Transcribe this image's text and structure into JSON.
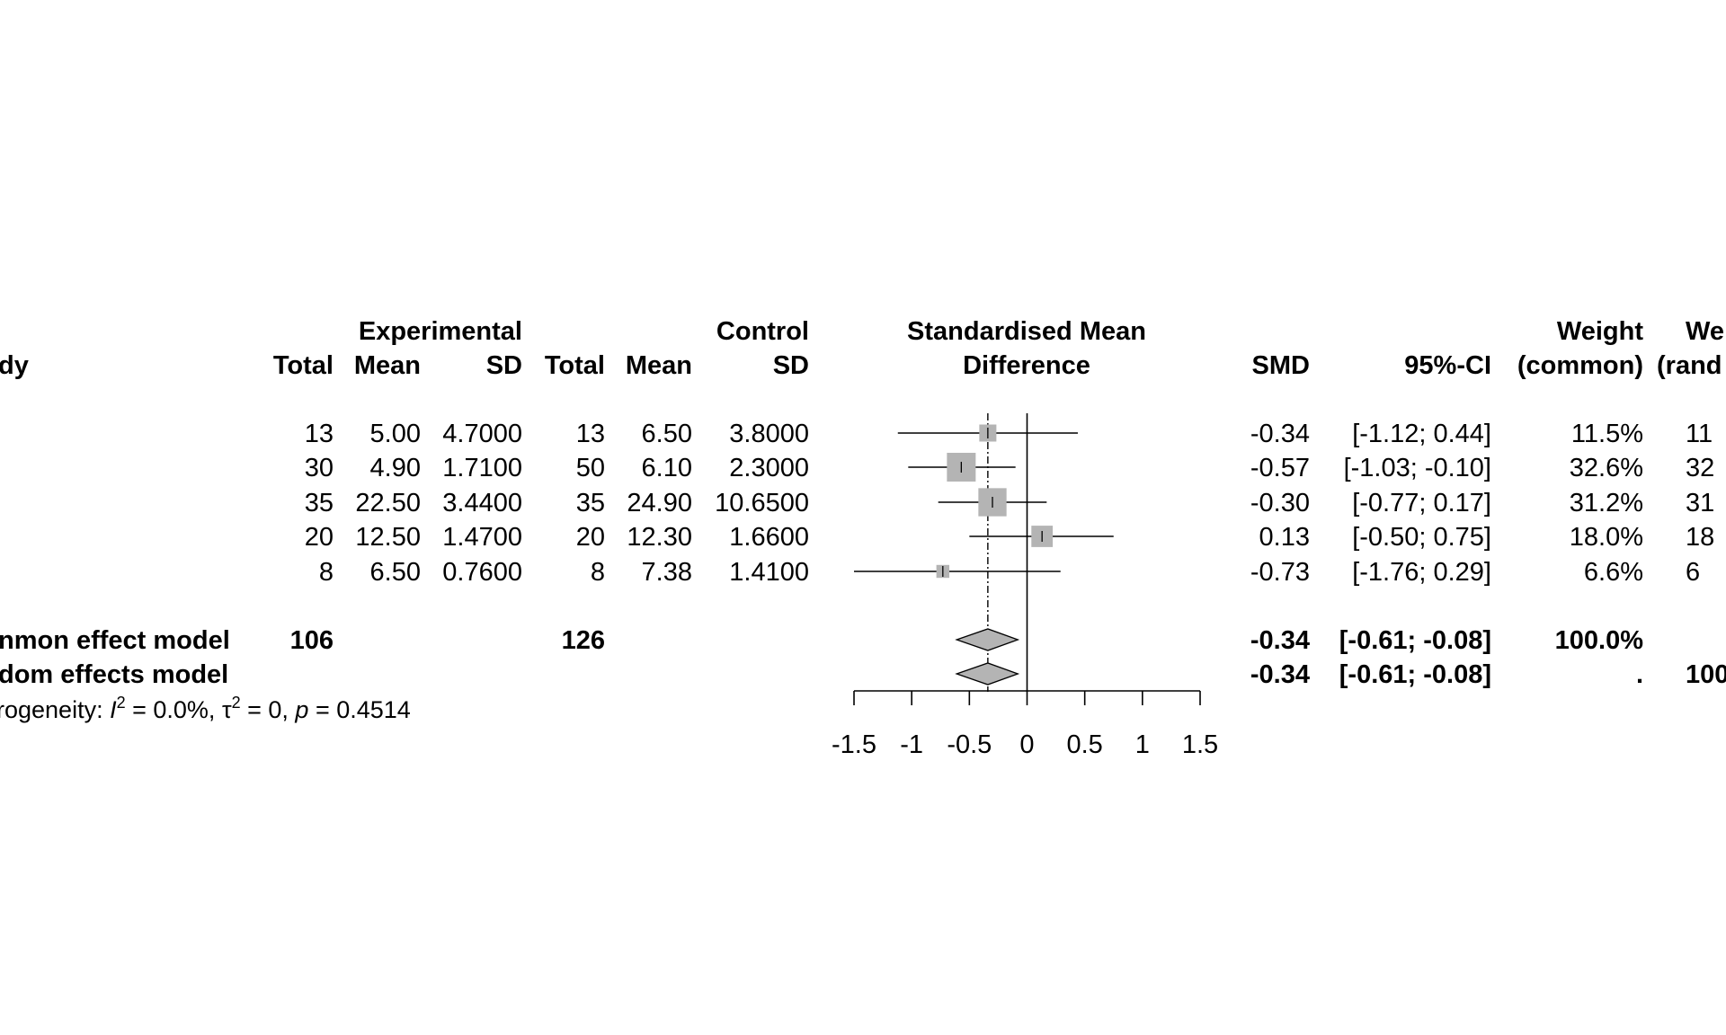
{
  "chart_data": {
    "type": "forest",
    "headers": {
      "study_label": "dy",
      "experimental_group": "Experimental",
      "control_group": "Control",
      "effect_measure": [
        "Standardised Mean",
        "Difference"
      ],
      "total": "Total",
      "mean": "Mean",
      "sd": "SD",
      "smd": "SMD",
      "ci": "95%-CI",
      "weight_common": [
        "Weight",
        "(common)"
      ],
      "weight_random": [
        "We",
        "(rand"
      ]
    },
    "studies": [
      {
        "exp_total": "13",
        "exp_mean": "5.00",
        "exp_sd": "4.7000",
        "ctrl_total": "13",
        "ctrl_mean": "6.50",
        "ctrl_sd": "3.8000",
        "smd": -0.34,
        "lower": -1.12,
        "upper": 0.44,
        "smd_text": "-0.34",
        "ci_text": "[-1.12;  0.44]",
        "w_common": "11.5%",
        "w_random": "11",
        "weight": 11.5
      },
      {
        "exp_total": "30",
        "exp_mean": "4.90",
        "exp_sd": "1.7100",
        "ctrl_total": "50",
        "ctrl_mean": "6.10",
        "ctrl_sd": "2.3000",
        "smd": -0.57,
        "lower": -1.03,
        "upper": -0.1,
        "smd_text": "-0.57",
        "ci_text": "[-1.03; -0.10]",
        "w_common": "32.6%",
        "w_random": "32",
        "weight": 32.6
      },
      {
        "exp_total": "35",
        "exp_mean": "22.50",
        "exp_sd": "3.4400",
        "ctrl_total": "35",
        "ctrl_mean": "24.90",
        "ctrl_sd": "10.6500",
        "smd": -0.3,
        "lower": -0.77,
        "upper": 0.17,
        "smd_text": "-0.30",
        "ci_text": "[-0.77;  0.17]",
        "w_common": "31.2%",
        "w_random": "31",
        "weight": 31.2
      },
      {
        "exp_total": "20",
        "exp_mean": "12.50",
        "exp_sd": "1.4700",
        "ctrl_total": "20",
        "ctrl_mean": "12.30",
        "ctrl_sd": "1.6600",
        "smd": 0.13,
        "lower": -0.5,
        "upper": 0.75,
        "smd_text": "0.13",
        "ci_text": "[-0.50;  0.75]",
        "w_common": "18.0%",
        "w_random": "18",
        "weight": 18.0
      },
      {
        "exp_total": "8",
        "exp_mean": "6.50",
        "exp_sd": "0.7600",
        "ctrl_total": "8",
        "ctrl_mean": "7.38",
        "ctrl_sd": "1.4100",
        "smd": -0.73,
        "lower": -1.76,
        "upper": 0.29,
        "smd_text": "-0.73",
        "ci_text": "[-1.76;  0.29]",
        "w_common": "6.6%",
        "w_random": "6",
        "weight": 6.6
      }
    ],
    "summary": [
      {
        "label": "nmon effect model",
        "exp_total": "106",
        "ctrl_total": "126",
        "smd": -0.34,
        "lower": -0.61,
        "upper": -0.08,
        "smd_text": "-0.34",
        "ci_text": "[-0.61; -0.08]",
        "w_common": "100.0%",
        "w_random": ""
      },
      {
        "label": "dom effects model",
        "exp_total": "",
        "ctrl_total": "",
        "smd": -0.34,
        "lower": -0.61,
        "upper": -0.08,
        "smd_text": "-0.34",
        "ci_text": "[-0.61; -0.08]",
        "w_common": ".",
        "w_random": "100"
      }
    ],
    "heterogeneity": {
      "prefix": "rogeneity: ",
      "i2": "= 0.0%, ",
      "tau2": "= 0, ",
      "p": "= 0.4514"
    },
    "x_ticks": [
      -1.5,
      -1,
      -0.5,
      0,
      0.5,
      1,
      1.5
    ],
    "x_tick_labels": [
      "-1.5",
      "-1",
      "-0.5",
      "0",
      "0.5",
      "1",
      "1.5"
    ],
    "xlim": [
      -1.5,
      1.5
    ],
    "reference_line": 0,
    "colors": {
      "box": "#b4b4b4",
      "diamond": "#b4b4b4",
      "line": "#000000"
    }
  }
}
